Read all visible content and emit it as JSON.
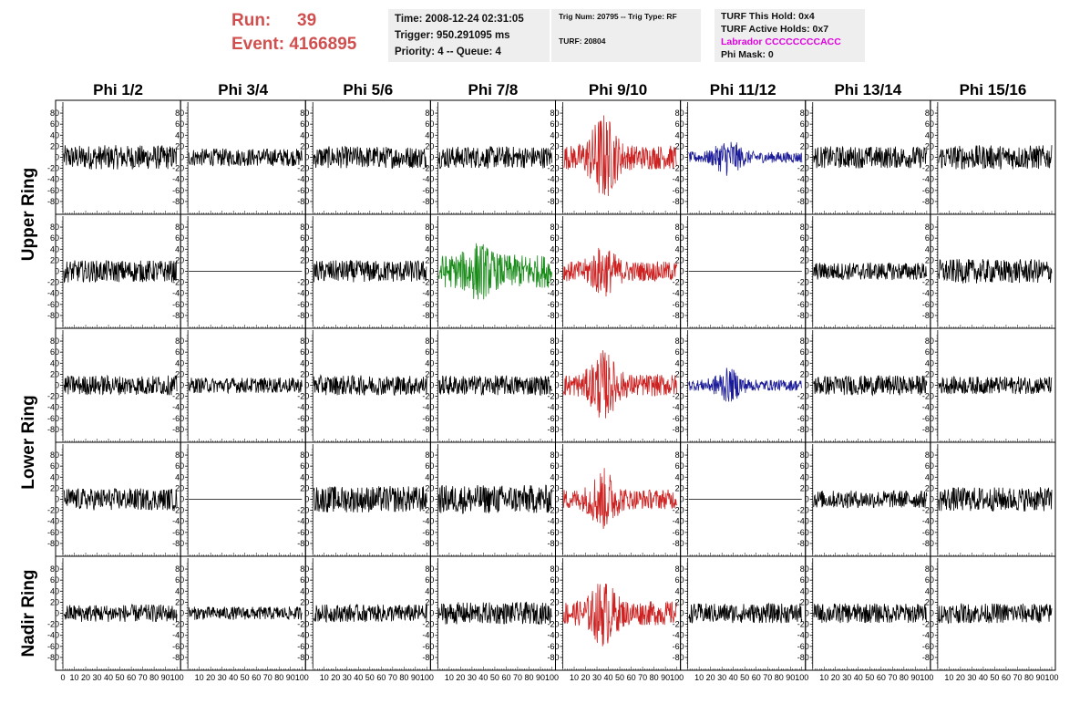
{
  "header": {
    "run_label": "Run:",
    "run_value": "39",
    "event_label": "Event:",
    "event_value": "4166895"
  },
  "info_time": {
    "time": "Time: 2008-12-24 02:31:05",
    "trigger": "Trigger: 950.291095 ms",
    "priority": "Priority: 4 -- Queue: 4"
  },
  "info_trig": {
    "trig": "Trig Num: 20795 -- Trig Type: RF",
    "turf": "TURF: 20804"
  },
  "info_turf": {
    "hold": "TURF This Hold: 0x4",
    "active": "TURF Active Holds: 0x7",
    "labrador": "Labrador CCCCCCCCACC",
    "phi_mask": "Phi Mask: 0"
  },
  "colors": {
    "run_text": "#d05050",
    "labrador_text": "#e000e0",
    "trace_default": "#000000",
    "trace_red": "#cc2222",
    "trace_blue": "#1a1a99",
    "trace_green": "#1a8c1a",
    "panel_bg": "#eeeeee"
  },
  "chart_data": {
    "type": "line",
    "columns": [
      "Phi 1/2",
      "Phi 3/4",
      "Phi 5/6",
      "Phi 7/8",
      "Phi 9/10",
      "Phi 11/12",
      "Phi 13/14",
      "Phi 15/16"
    ],
    "ring_labels": [
      {
        "text": "Upper Ring",
        "rows": [
          0,
          1
        ]
      },
      {
        "text": "Lower Ring",
        "rows": [
          2,
          3
        ]
      },
      {
        "text": "Nadir Ring",
        "rows": [
          4,
          4
        ]
      }
    ],
    "y_ticks": [
      "80",
      "60",
      "40",
      "20",
      "0",
      "-20",
      "-40",
      "-60",
      "-80"
    ],
    "x_ticks": [
      [
        "0",
        "10",
        "20",
        "30",
        "40",
        "50",
        "60",
        "70",
        "80",
        "90",
        "100"
      ],
      [
        "10",
        "20",
        "30",
        "40",
        "50",
        "60",
        "70",
        "80",
        "90",
        "100"
      ],
      [
        "10",
        "20",
        "30",
        "40",
        "50",
        "60",
        "70",
        "80",
        "90",
        "100"
      ],
      [
        "10",
        "20",
        "30",
        "40",
        "50",
        "60",
        "70",
        "80",
        "90",
        "100"
      ],
      [
        "10",
        "20",
        "30",
        "40",
        "50",
        "60",
        "70",
        "80",
        "90",
        "100"
      ],
      [
        "10",
        "20",
        "30",
        "40",
        "50",
        "60",
        "70",
        "80",
        "90",
        "100"
      ],
      [
        "10",
        "20",
        "30",
        "40",
        "50",
        "60",
        "70",
        "80",
        "90",
        "100"
      ],
      [
        "10",
        "20",
        "30",
        "40",
        "50",
        "60",
        "70",
        "80",
        "90",
        "100"
      ]
    ],
    "xlim": [
      0,
      100
    ],
    "ylim": [
      -90,
      90
    ],
    "samples": 260,
    "traces": [
      [
        {
          "color": "black",
          "amp": 22,
          "burst": 0
        },
        {
          "color": "black",
          "amp": 16,
          "burst": 0
        },
        {
          "color": "black",
          "amp": 20,
          "burst": 0
        },
        {
          "color": "black",
          "amp": 20,
          "burst": 0
        },
        {
          "color": "red",
          "amp": 22,
          "burst": 60
        },
        {
          "color": "blue",
          "amp": 10,
          "burst": 25
        },
        {
          "color": "black",
          "amp": 20,
          "burst": 0
        },
        {
          "color": "black",
          "amp": 22,
          "burst": 0
        }
      ],
      [
        {
          "color": "black",
          "amp": 20,
          "burst": 0
        },
        {
          "color": "black",
          "amp": 0,
          "burst": 0
        },
        {
          "color": "black",
          "amp": 20,
          "burst": 0
        },
        {
          "color": "green",
          "amp": 30,
          "burst": 25
        },
        {
          "color": "red",
          "amp": 18,
          "burst": 30
        },
        {
          "color": "black",
          "amp": 0,
          "burst": 0
        },
        {
          "color": "black",
          "amp": 16,
          "burst": 0
        },
        {
          "color": "black",
          "amp": 22,
          "burst": 0
        }
      ],
      [
        {
          "color": "black",
          "amp": 18,
          "burst": 0
        },
        {
          "color": "black",
          "amp": 14,
          "burst": 0
        },
        {
          "color": "black",
          "amp": 18,
          "burst": 0
        },
        {
          "color": "black",
          "amp": 18,
          "burst": 0
        },
        {
          "color": "red",
          "amp": 20,
          "burst": 45
        },
        {
          "color": "blue",
          "amp": 10,
          "burst": 22
        },
        {
          "color": "black",
          "amp": 18,
          "burst": 0
        },
        {
          "color": "black",
          "amp": 16,
          "burst": 0
        }
      ],
      [
        {
          "color": "black",
          "amp": 20,
          "burst": 0
        },
        {
          "color": "black",
          "amp": 0,
          "burst": 0
        },
        {
          "color": "black",
          "amp": 24,
          "burst": 0
        },
        {
          "color": "black",
          "amp": 26,
          "burst": 0
        },
        {
          "color": "red",
          "amp": 18,
          "burst": 40
        },
        {
          "color": "black",
          "amp": 0,
          "burst": 0
        },
        {
          "color": "black",
          "amp": 16,
          "burst": 0
        },
        {
          "color": "black",
          "amp": 22,
          "burst": 0
        }
      ],
      [
        {
          "color": "black",
          "amp": 16,
          "burst": 0
        },
        {
          "color": "black",
          "amp": 12,
          "burst": 0
        },
        {
          "color": "black",
          "amp": 16,
          "burst": 0
        },
        {
          "color": "black",
          "amp": 20,
          "burst": 0
        },
        {
          "color": "red",
          "amp": 22,
          "burst": 40
        },
        {
          "color": "black",
          "amp": 18,
          "burst": 0
        },
        {
          "color": "black",
          "amp": 18,
          "burst": 0
        },
        {
          "color": "black",
          "amp": 18,
          "burst": 0
        }
      ]
    ]
  }
}
